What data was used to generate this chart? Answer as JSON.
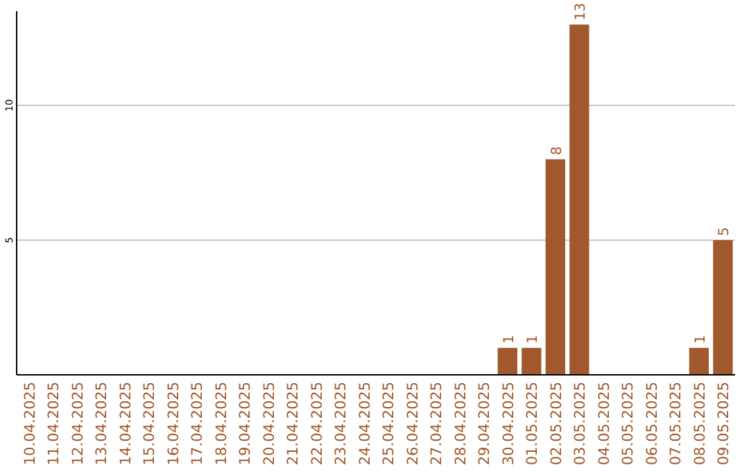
{
  "chart_data": {
    "type": "bar",
    "categories": [
      "10.04.2025",
      "11.04.2025",
      "12.04.2025",
      "13.04.2025",
      "14.04.2025",
      "15.04.2025",
      "16.04.2025",
      "17.04.2025",
      "18.04.2025",
      "19.04.2025",
      "20.04.2025",
      "21.04.2025",
      "22.04.2025",
      "23.04.2025",
      "24.04.2025",
      "25.04.2025",
      "26.04.2025",
      "27.04.2025",
      "28.04.2025",
      "29.04.2025",
      "30.04.2025",
      "01.05.2025",
      "02.05.2025",
      "03.05.2025",
      "04.05.2025",
      "05.05.2025",
      "06.05.2025",
      "07.05.2025",
      "08.05.2025",
      "09.05.2025"
    ],
    "values": [
      0,
      0,
      0,
      0,
      0,
      0,
      0,
      0,
      0,
      0,
      0,
      0,
      0,
      0,
      0,
      0,
      0,
      0,
      0,
      0,
      1,
      1,
      8,
      13,
      0,
      0,
      0,
      0,
      1,
      5
    ],
    "value_labels": [
      null,
      null,
      null,
      null,
      null,
      null,
      null,
      null,
      null,
      null,
      null,
      null,
      null,
      null,
      null,
      null,
      null,
      null,
      null,
      null,
      "1",
      "1",
      "8",
      "13",
      null,
      null,
      null,
      null,
      "1",
      "5"
    ],
    "color": "#a0582c",
    "ylim": [
      0,
      13.5
    ],
    "yticks": [
      5,
      10
    ],
    "grid": "y"
  }
}
